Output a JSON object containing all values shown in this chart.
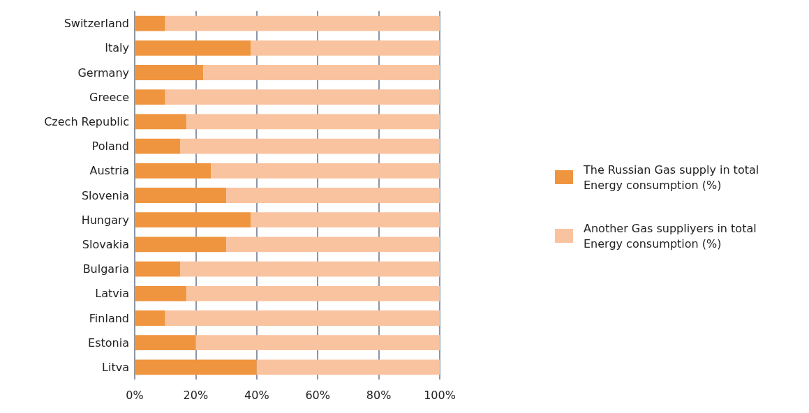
{
  "chart_data": {
    "type": "bar",
    "orientation": "horizontal",
    "stacked": true,
    "categories": [
      "Switzerland",
      "Italy",
      "Germany",
      "Greece",
      "Czech Republic",
      "Poland",
      "Austria",
      "Slovenia",
      "Hungary",
      "Slovakia",
      "Bulgaria",
      "Latvia",
      "Finland",
      "Estonia",
      "Litva"
    ],
    "series": [
      {
        "name": "The Russian Gas supply in total Energy consumption (%)",
        "color": "#f0953f",
        "values": [
          10,
          38,
          22.5,
          10,
          17,
          15,
          25,
          30,
          38,
          30,
          15,
          17,
          10,
          20,
          40
        ]
      },
      {
        "name": "Another Gas suppliyers in total Energy consumption (%)",
        "color": "#f9c3a0",
        "values": [
          90,
          62,
          77.5,
          90,
          83,
          85,
          75,
          70,
          62,
          70,
          85,
          83,
          90,
          80,
          60
        ]
      }
    ],
    "xlim": [
      0,
      100
    ],
    "xticks": [
      {
        "value": 0,
        "label": "0%"
      },
      {
        "value": 20,
        "label": "20%"
      },
      {
        "value": 40,
        "label": "40%"
      },
      {
        "value": 60,
        "label": "60%"
      },
      {
        "value": 80,
        "label": "80%"
      },
      {
        "value": 100,
        "label": "100%"
      }
    ],
    "grid": "x",
    "legend": "right"
  }
}
